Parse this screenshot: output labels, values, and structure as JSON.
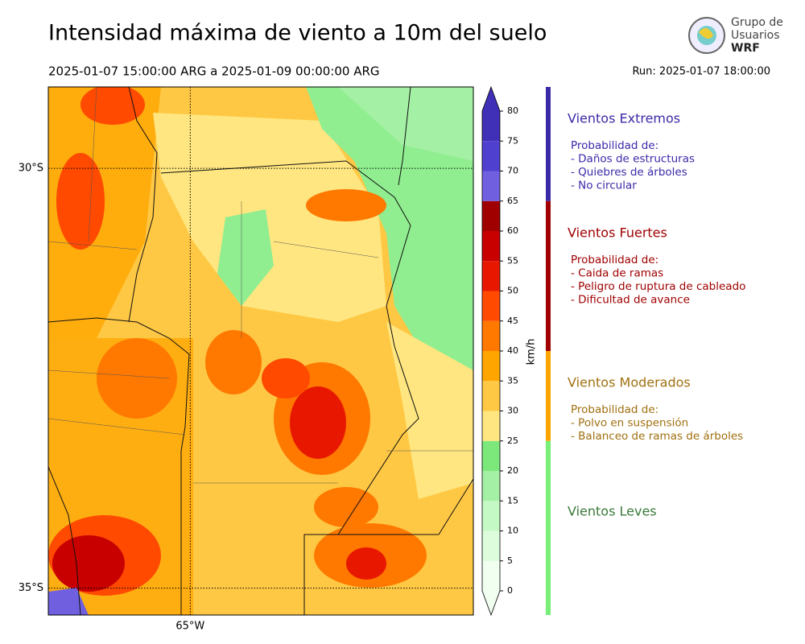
{
  "header": {
    "title": "Intensidad máxima de viento a 10m del suelo",
    "period": "2025-01-07 15:00:00 ARG  a  2025-01-09 00:00:00 ARG",
    "run": "Run: 2025-01-07 18:00:00"
  },
  "logo": {
    "lines": [
      "Grupo de",
      "Usuarios",
      "WRF"
    ]
  },
  "map": {
    "xlim": [
      -66.69,
      -61.63
    ],
    "ylim": [
      -35.32,
      -29.03
    ],
    "xticks": [
      {
        "value": -65,
        "label": "65°W"
      }
    ],
    "yticks": [
      {
        "value": -30,
        "label": "30°S"
      },
      {
        "value": -35,
        "label": "35°S"
      }
    ]
  },
  "colorbar": {
    "label": "km/h",
    "lim": [
      0,
      80
    ],
    "ticks": [
      0,
      5,
      10,
      15,
      20,
      25,
      30,
      35,
      40,
      45,
      50,
      55,
      60,
      65,
      70,
      75,
      80
    ],
    "colors": [
      "#f0fff0",
      "#dcfcdc",
      "#c4f8c4",
      "#a4f0a4",
      "#7ce87c",
      "#ffe680",
      "#ffc844",
      "#ffa500",
      "#ff7800",
      "#ff4a00",
      "#e81800",
      "#c80000",
      "#a00000",
      "#7060e0",
      "#5040d0",
      "#4030b8"
    ]
  },
  "legend": [
    {
      "title": "Vientos Extremos",
      "color": "#3a2aa8",
      "bar": "#3a2aa8",
      "range": [
        65,
        80
      ],
      "lines": [
        "Probabilidad de:",
        "- Daños de estructuras",
        "- Quiebres de árboles",
        "- No circular"
      ]
    },
    {
      "title": "Vientos Fuertes",
      "color": "#a00000",
      "bar": "#a00000",
      "range": [
        40,
        65
      ],
      "lines": [
        "Probabilidad de:",
        "- Caida de ramas",
        "- Peligro de ruptura de cableado",
        "- Dificultad de avance"
      ]
    },
    {
      "title": "Vientos Moderados",
      "color": "#a07010",
      "bar": "#ffa500",
      "range": [
        25,
        40
      ],
      "lines": [
        "Probabilidad de:",
        "- Polvo en suspensión",
        "- Balanceo de ramas de árboles"
      ]
    },
    {
      "title": "Vientos Leves",
      "color": "#3a7a3a",
      "bar": "#78f078",
      "range": [
        0,
        25
      ],
      "lines": []
    }
  ]
}
